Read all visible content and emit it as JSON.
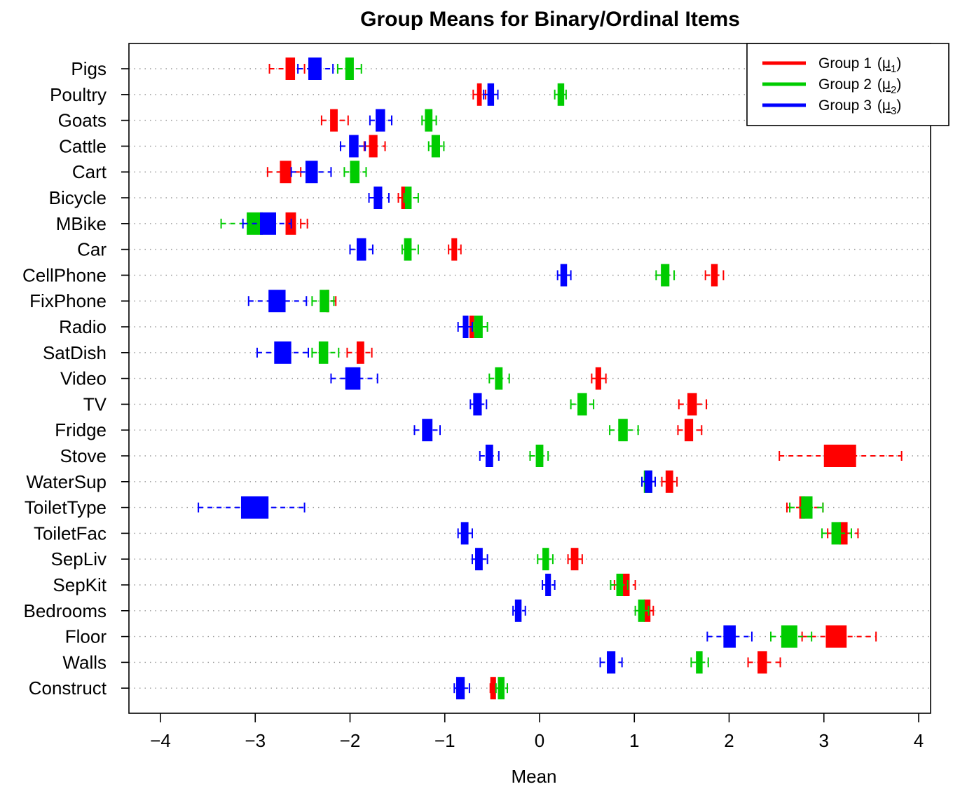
{
  "chart_data": {
    "type": "boxplot",
    "title": "Group Means for Binary/Ordinal Items",
    "xlabel": "Mean",
    "ylabel": "",
    "xlim": [
      -4.2,
      4.2
    ],
    "xticks": [
      -4,
      -3,
      -2,
      -1,
      0,
      1,
      2,
      3,
      4
    ],
    "xtick_labels": [
      "−4",
      "−3",
      "−2",
      "−1",
      "0",
      "1",
      "2",
      "3",
      "4"
    ],
    "grid": "horizontal dotted",
    "legend_position": "top-right",
    "legend": [
      {
        "name": "Group 1",
        "symbol": "μ",
        "subscript": "1",
        "color": "#ff0000"
      },
      {
        "name": "Group 2",
        "symbol": "μ",
        "subscript": "2",
        "color": "#00cc00"
      },
      {
        "name": "Group 3",
        "symbol": "μ",
        "subscript": "3",
        "color": "#0000ff"
      }
    ],
    "categories": [
      "Pigs",
      "Poultry",
      "Goats",
      "Cattle",
      "Cart",
      "Bicycle",
      "MBike",
      "Car",
      "CellPhone",
      "FixPhone",
      "Radio",
      "SatDish",
      "Video",
      "TV",
      "Fridge",
      "Stove",
      "WaterSup",
      "ToiletType",
      "ToiletFac",
      "SepLiv",
      "SepKit",
      "Bedrooms",
      "Floor",
      "Walls",
      "Construct"
    ],
    "series": [
      {
        "name": "Group 1",
        "color": "#ff0000",
        "boxes": [
          [
            -2.85,
            -2.68,
            -2.58,
            -2.48
          ],
          [
            -0.7,
            -0.66,
            -0.61,
            -0.57
          ],
          [
            -2.3,
            -2.21,
            -2.13,
            -2.02
          ],
          [
            -1.85,
            -1.8,
            -1.71,
            -1.63
          ],
          [
            -2.87,
            -2.74,
            -2.62,
            -2.52
          ],
          [
            -1.49,
            -1.46,
            -1.4,
            -1.36
          ],
          [
            -2.52,
            -2.68,
            -2.57,
            -2.45
          ],
          [
            -0.96,
            -0.93,
            -0.87,
            -0.83
          ],
          [
            1.75,
            1.81,
            1.88,
            1.94
          ],
          [
            -2.3,
            -2.25,
            -2.22,
            -2.15
          ],
          [
            -0.77,
            -0.74,
            -0.69,
            -0.66
          ],
          [
            -2.03,
            -1.93,
            -1.85,
            -1.77
          ],
          [
            0.55,
            0.59,
            0.65,
            0.7
          ],
          [
            1.47,
            1.56,
            1.66,
            1.76
          ],
          [
            1.46,
            1.53,
            1.62,
            1.71
          ],
          [
            2.53,
            3.0,
            3.34,
            3.82
          ],
          [
            1.29,
            1.33,
            1.41,
            1.45
          ],
          [
            2.61,
            2.74,
            2.8,
            2.99
          ],
          [
            3.04,
            3.16,
            3.25,
            3.36
          ],
          [
            0.3,
            0.33,
            0.41,
            0.45
          ],
          [
            0.79,
            0.88,
            0.95,
            1.01
          ],
          [
            1.06,
            1.1,
            1.17,
            1.2
          ],
          [
            2.77,
            3.02,
            3.24,
            3.55
          ],
          [
            2.2,
            2.3,
            2.4,
            2.54
          ],
          [
            -0.52,
            -0.52,
            -0.46,
            -0.42
          ]
        ]
      },
      {
        "name": "Group 2",
        "color": "#00cc00",
        "boxes": [
          [
            -2.13,
            -2.05,
            -1.96,
            -1.88
          ],
          [
            0.16,
            0.19,
            0.26,
            0.28
          ],
          [
            -1.24,
            -1.21,
            -1.13,
            -1.09
          ],
          [
            -1.17,
            -1.14,
            -1.05,
            -1.01
          ],
          [
            -2.06,
            -2.0,
            -1.9,
            -1.83
          ],
          [
            -1.43,
            -1.42,
            -1.35,
            -1.28
          ],
          [
            -3.36,
            -3.09,
            -2.92,
            -2.91
          ],
          [
            -1.45,
            -1.43,
            -1.35,
            -1.28
          ],
          [
            1.23,
            1.28,
            1.37,
            1.42
          ],
          [
            -2.4,
            -2.32,
            -2.22,
            -2.17
          ],
          [
            -0.7,
            -0.69,
            -0.6,
            -0.55
          ],
          [
            -2.4,
            -2.33,
            -2.23,
            -2.12
          ],
          [
            -0.53,
            -0.47,
            -0.39,
            -0.32
          ],
          [
            0.33,
            0.4,
            0.5,
            0.57
          ],
          [
            0.74,
            0.83,
            0.93,
            1.04
          ],
          [
            -0.1,
            -0.04,
            0.04,
            0.09
          ],
          [
            1.08,
            1.1,
            1.19,
            1.22
          ],
          [
            2.64,
            2.76,
            2.88,
            2.99
          ],
          [
            2.98,
            3.08,
            3.18,
            3.29
          ],
          [
            -0.02,
            0.03,
            0.1,
            0.14
          ],
          [
            0.75,
            0.81,
            0.88,
            0.93
          ],
          [
            1.01,
            1.04,
            1.11,
            1.15
          ],
          [
            2.44,
            2.55,
            2.72,
            2.87
          ],
          [
            1.6,
            1.65,
            1.72,
            1.78
          ],
          [
            -0.46,
            -0.44,
            -0.37,
            -0.34
          ]
        ]
      },
      {
        "name": "Group 3",
        "color": "#0000ff",
        "boxes": [
          [
            -2.55,
            -2.44,
            -2.3,
            -2.18
          ],
          [
            -0.59,
            -0.55,
            -0.48,
            -0.44
          ],
          [
            -1.79,
            -1.73,
            -1.63,
            -1.56
          ],
          [
            -2.1,
            -2.01,
            -1.91,
            -1.84
          ],
          [
            -2.62,
            -2.47,
            -2.34,
            -2.2
          ],
          [
            -1.8,
            -1.75,
            -1.66,
            -1.59
          ],
          [
            -3.13,
            -2.95,
            -2.78,
            -2.62
          ],
          [
            -2.0,
            -1.93,
            -1.83,
            -1.76
          ],
          [
            0.19,
            0.22,
            0.29,
            0.33
          ],
          [
            -3.07,
            -2.86,
            -2.68,
            -2.46
          ],
          [
            -0.86,
            -0.81,
            -0.75,
            -0.71
          ],
          [
            -2.98,
            -2.8,
            -2.62,
            -2.44
          ],
          [
            -2.2,
            -2.05,
            -1.89,
            -1.71
          ],
          [
            -0.73,
            -0.7,
            -0.61,
            -0.56
          ],
          [
            -1.32,
            -1.24,
            -1.13,
            -1.05
          ],
          [
            -0.63,
            -0.57,
            -0.49,
            -0.43
          ],
          [
            1.08,
            1.11,
            1.19,
            1.22
          ],
          [
            -3.6,
            -3.15,
            -2.86,
            -2.48
          ],
          [
            -0.86,
            -0.83,
            -0.75,
            -0.71
          ],
          [
            -0.71,
            -0.68,
            -0.6,
            -0.55
          ],
          [
            0.03,
            0.06,
            0.12,
            0.16
          ],
          [
            -0.28,
            -0.26,
            -0.19,
            -0.15
          ],
          [
            1.77,
            1.94,
            2.07,
            2.24
          ],
          [
            0.64,
            0.71,
            0.8,
            0.87
          ],
          [
            -0.9,
            -0.88,
            -0.79,
            -0.74
          ]
        ]
      }
    ]
  }
}
